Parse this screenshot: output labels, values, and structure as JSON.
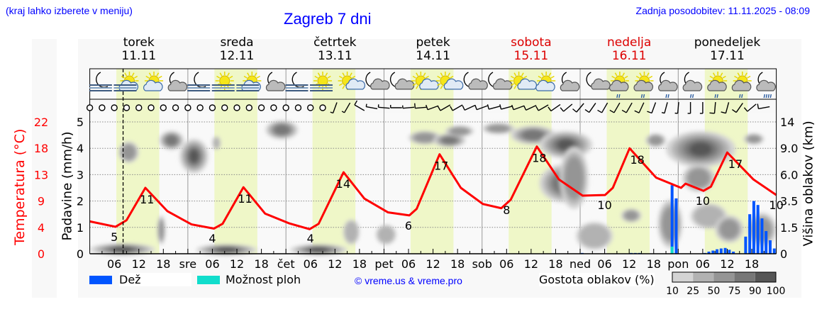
{
  "header": {
    "hint": "(kraj lahko izberete v meniju)",
    "title": "Zagreb 7 dni",
    "updated": "Zadnja posodobitev: 11.11.2025 - 08:09"
  },
  "days": [
    {
      "name": "torek",
      "date": "11.11",
      "weekend": false
    },
    {
      "name": "sreda",
      "date": "12.11",
      "weekend": false
    },
    {
      "name": "četrtek",
      "date": "13.11",
      "weekend": false
    },
    {
      "name": "petek",
      "date": "14.11",
      "weekend": false
    },
    {
      "name": "sobota",
      "date": "15.11",
      "weekend": true
    },
    {
      "name": "nedelja",
      "date": "16.11",
      "weekend": true
    },
    {
      "name": "ponedeljek",
      "date": "17.11",
      "weekend": false
    }
  ],
  "colors": {
    "temperature": "#ff0000",
    "rain": "#0055ff",
    "showers": "#11ddcc",
    "daylight": "#eff7c8",
    "night": "#f9f9f9",
    "weekend": "#dd0000"
  },
  "icons": [
    "moon-fog",
    "sun-cloud-fog",
    "sun-cloud",
    "moon-cloud",
    "moon-fog",
    "sun-fog",
    "sun-cloud-fog",
    "moon-cloud",
    "moon-fog",
    "sun-fog",
    "sun-small-cloud",
    "moon-small-cloud",
    "moon-small-cloud",
    "sun-small-cloud",
    "sun-small-cloud",
    "moon-small-cloud",
    "moon-small-cloud",
    "sun-small-cloud",
    "sun-cloud",
    "moon-cloud",
    "moon-small-cloud",
    "sun-cloud-rain",
    "sun-cloud-rain",
    "moon-cloud-rain",
    "moon-cloud-rain",
    "sun-cloud-rain",
    "sun-cloud-rain",
    "moon-cloud-heavy-rain"
  ],
  "chart_data": {
    "type": "meteogram",
    "current_time": "08:09",
    "x_ticks": [
      "06",
      "12",
      "18",
      "sre",
      "06",
      "12",
      "18",
      "čet",
      "06",
      "12",
      "18",
      "pet",
      "06",
      "12",
      "18",
      "sob",
      "06",
      "12",
      "18",
      "ned",
      "06",
      "12",
      "18",
      "pon",
      "06",
      "12",
      "18"
    ],
    "left_axis_temp": {
      "label": "Temperatura (°C)",
      "ticks": [
        "0",
        "4",
        "9",
        "13",
        "18",
        "22"
      ],
      "range": [
        0,
        22
      ]
    },
    "left_axis_precip": {
      "label": "Padavine (mm/h)",
      "ticks": [
        "0",
        "1",
        "2",
        "3",
        "4",
        "5"
      ],
      "range": [
        0,
        5
      ]
    },
    "right_axis_cloud": {
      "label": "Višina oblakov (km)",
      "ticks": [
        "0",
        "1.5",
        "3.5",
        "6.0",
        "9.0",
        "14"
      ]
    },
    "daylight_hours": [
      6.5,
      17
    ],
    "temperature": [
      [
        0,
        5.4
      ],
      [
        6.3,
        4.5
      ],
      [
        9,
        5.6
      ],
      [
        13.6,
        11
      ],
      [
        19,
        7.1
      ],
      [
        24.9,
        4.9
      ],
      [
        30.4,
        4.2
      ],
      [
        32.5,
        5
      ],
      [
        37.6,
        11.1
      ],
      [
        42.9,
        6.7
      ],
      [
        48.7,
        5.1
      ],
      [
        53.8,
        4.1
      ],
      [
        56,
        5
      ],
      [
        62.1,
        13.6
      ],
      [
        67.2,
        9.2
      ],
      [
        73,
        6.9
      ],
      [
        78.2,
        6.4
      ],
      [
        80,
        7.5
      ],
      [
        85.6,
        16.6
      ],
      [
        90.8,
        11
      ],
      [
        96.2,
        8.3
      ],
      [
        100.7,
        7.6
      ],
      [
        103,
        9
      ],
      [
        109.4,
        17.9
      ],
      [
        114.8,
        12.4
      ],
      [
        120.6,
        9.7
      ],
      [
        126.1,
        9.8
      ],
      [
        128,
        11
      ],
      [
        132.1,
        17.6
      ],
      [
        138.6,
        12.7
      ],
      [
        144.7,
        11
      ],
      [
        145.8,
        11.7
      ],
      [
        150.2,
        10.5
      ],
      [
        152,
        11.2
      ],
      [
        156,
        16.9
      ],
      [
        162.4,
        12.4
      ],
      [
        168,
        9.8
      ]
    ],
    "temperature_labels": [
      {
        "h": 6,
        "v": "5"
      },
      {
        "h": 14,
        "v": "11"
      },
      {
        "h": 30,
        "v": "4"
      },
      {
        "h": 38,
        "v": "11"
      },
      {
        "h": 54,
        "v": "4"
      },
      {
        "h": 62,
        "v": "14"
      },
      {
        "h": 78,
        "v": "6"
      },
      {
        "h": 86,
        "v": "17"
      },
      {
        "h": 102,
        "v": "8"
      },
      {
        "h": 110,
        "v": "18"
      },
      {
        "h": 126,
        "v": "10"
      },
      {
        "h": 134,
        "v": "18"
      },
      {
        "h": 150,
        "v": "10"
      },
      {
        "h": 158,
        "v": "17"
      },
      {
        "h": 168,
        "v": "10"
      }
    ],
    "precipitation": [
      [
        120,
        0.03,
        0
      ],
      [
        132,
        0.03,
        0
      ],
      [
        133,
        0.03,
        0
      ],
      [
        134,
        0.03,
        0
      ],
      [
        142,
        2.6,
        0.27
      ],
      [
        143,
        2.1,
        0
      ],
      [
        150,
        0.03,
        0
      ],
      [
        151,
        0.08,
        0
      ],
      [
        152,
        0.12,
        0
      ],
      [
        153,
        0.17,
        0
      ],
      [
        154,
        0.2,
        0
      ],
      [
        155,
        0.22,
        0
      ],
      [
        156,
        0.15,
        0
      ],
      [
        157,
        0.08,
        0
      ],
      [
        160,
        0.65,
        0
      ],
      [
        161,
        1.5,
        0
      ],
      [
        162,
        2.0,
        0
      ],
      [
        163,
        1.85,
        0
      ],
      [
        164,
        1.34,
        0
      ],
      [
        165,
        0.86,
        0
      ],
      [
        166,
        0.51,
        0
      ],
      [
        167,
        0.2,
        0
      ]
    ],
    "cloud_patches": [
      [
        7,
        12,
        7.5,
        10,
        50
      ],
      [
        17,
        23,
        9,
        12,
        75
      ],
      [
        22,
        29,
        6.3,
        10.5,
        90
      ],
      [
        30,
        32,
        9,
        11,
        25
      ],
      [
        43,
        51,
        11,
        14,
        75
      ],
      [
        0,
        16,
        0,
        0.5,
        90
      ],
      [
        26,
        41,
        0,
        0.45,
        90
      ],
      [
        49,
        63,
        0,
        0.45,
        90
      ],
      [
        16.5,
        18.5,
        0.6,
        2.3,
        50
      ],
      [
        62,
        66,
        0.6,
        2,
        25
      ],
      [
        70,
        75,
        0.6,
        1.6,
        25
      ],
      [
        78,
        86,
        10,
        12,
        50
      ],
      [
        84,
        92,
        9.5,
        11.5,
        75
      ],
      [
        87,
        94,
        11.5,
        13,
        50
      ],
      [
        96,
        104,
        12,
        13.5,
        50
      ],
      [
        103,
        114,
        10,
        13,
        75
      ],
      [
        110,
        123,
        8,
        12,
        90
      ],
      [
        110,
        122,
        3.5,
        7,
        75
      ],
      [
        115,
        122,
        3,
        9,
        50
      ],
      [
        130,
        135,
        2,
        2.8,
        50
      ],
      [
        136,
        141,
        9.5,
        11.5,
        50
      ],
      [
        119,
        128,
        0.3,
        1.8,
        25
      ],
      [
        141,
        158,
        7,
        12,
        90
      ],
      [
        145,
        153,
        4.5,
        7,
        50
      ],
      [
        139,
        145,
        0.4,
        3.5,
        50
      ],
      [
        147,
        156,
        1.5,
        3.2,
        25
      ],
      [
        153,
        160,
        0.7,
        2.3,
        50
      ],
      [
        160,
        165,
        10,
        11.5,
        50
      ],
      [
        161,
        168,
        0.5,
        2.5,
        50
      ]
    ],
    "wind": [
      [
        0,
        0
      ],
      [
        3,
        0
      ],
      [
        6,
        0
      ],
      [
        9,
        0
      ],
      [
        12,
        0
      ],
      [
        15,
        0
      ],
      [
        18,
        0
      ],
      [
        21,
        0
      ],
      [
        24,
        0
      ],
      [
        27,
        0
      ],
      [
        30,
        0
      ],
      [
        33,
        0
      ],
      [
        36,
        0
      ],
      [
        39,
        0
      ],
      [
        42,
        0
      ],
      [
        45,
        0
      ],
      [
        48,
        0
      ],
      [
        51,
        0
      ],
      [
        54,
        0
      ],
      [
        57,
        0
      ],
      [
        200,
        5
      ],
      [
        210,
        5
      ],
      [
        300,
        10
      ],
      [
        280,
        5
      ],
      [
        275,
        5
      ],
      [
        270,
        5
      ],
      [
        265,
        5
      ],
      [
        265,
        10
      ],
      [
        250,
        10
      ],
      [
        240,
        10
      ],
      [
        240,
        10
      ],
      [
        245,
        10
      ],
      [
        250,
        10
      ],
      [
        255,
        10
      ],
      [
        255,
        10
      ],
      [
        250,
        10
      ],
      [
        245,
        10
      ],
      [
        240,
        10
      ],
      [
        235,
        10
      ],
      [
        230,
        10
      ],
      [
        220,
        10
      ],
      [
        215,
        10
      ],
      [
        210,
        10
      ],
      [
        210,
        10
      ],
      [
        210,
        10
      ],
      [
        205,
        10
      ],
      [
        200,
        10
      ],
      [
        195,
        5
      ],
      [
        185,
        5
      ],
      [
        180,
        5
      ],
      [
        180,
        5
      ],
      [
        185,
        10
      ],
      [
        195,
        10
      ],
      [
        215,
        10
      ],
      [
        230,
        10
      ],
      [
        260,
        10
      ]
    ],
    "legend": {
      "rain": "Dež",
      "showers": "Možnost ploh",
      "copyright": "© vreme.us & vreme.pro",
      "cloud_density": "Gostota oblakov (%)",
      "density_ticks": [
        "10",
        "25",
        "50",
        "75",
        "90",
        "100"
      ],
      "density_colors": [
        "#d4d4d4",
        "#b2b2b2",
        "#959595",
        "#777777",
        "#565656"
      ]
    }
  }
}
